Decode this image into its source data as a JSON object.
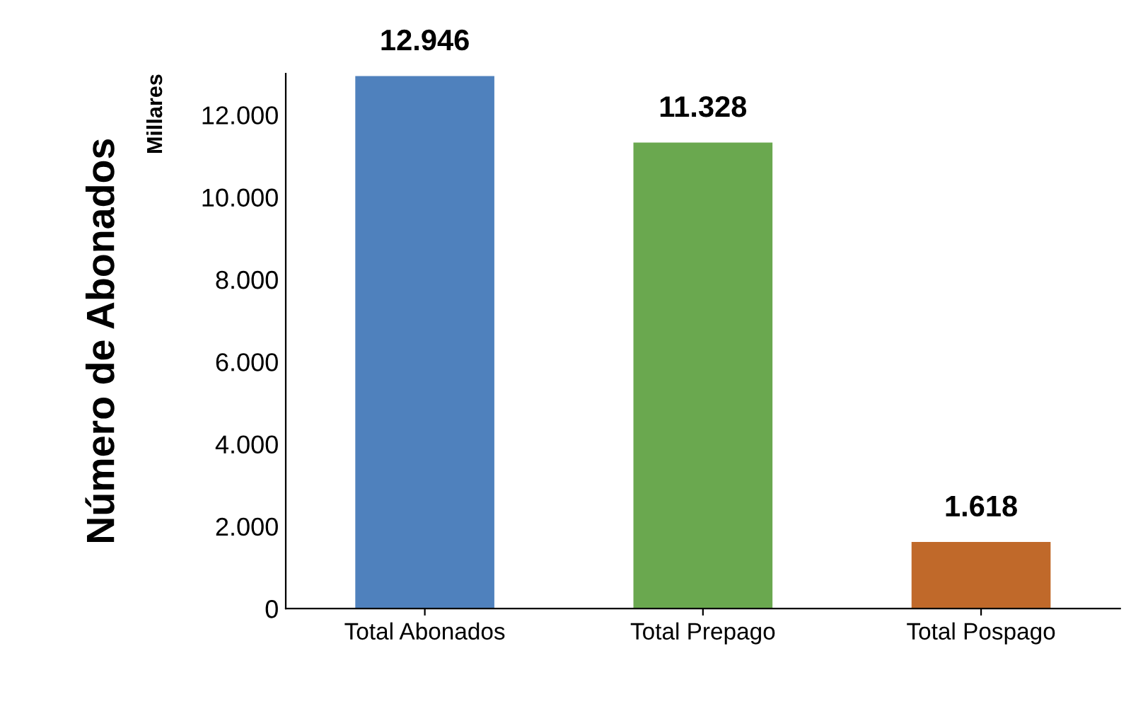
{
  "chart_data": {
    "type": "bar",
    "ylabel": "Número de Abonados",
    "annotations": [
      "Millares"
    ],
    "categories": [
      "Total Abonados",
      "Total Prepago",
      "Total Pospago"
    ],
    "values": [
      12946,
      11328,
      1618
    ],
    "colors": [
      "#4f81bd",
      "#6aa84f",
      "#c0692a"
    ],
    "value_labels": [
      "12.946",
      "11.328",
      "1.618"
    ],
    "ylim": [
      0,
      13000
    ],
    "yticks": [
      0,
      {
        "value": 2000,
        "label": "2.000"
      },
      {
        "value": 4000,
        "label": "4.000"
      },
      {
        "value": 6000,
        "label": "6.000"
      },
      {
        "value": 8000,
        "label": "8.000"
      },
      {
        "value": 10000,
        "label": "10.000"
      },
      {
        "value": 12000,
        "label": "12.000"
      }
    ],
    "grid": false,
    "legend": false
  }
}
